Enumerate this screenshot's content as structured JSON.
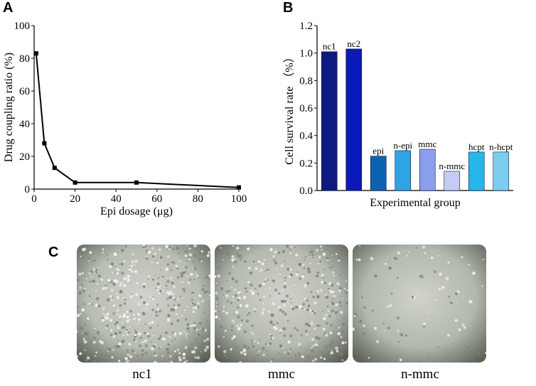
{
  "panels": {
    "a": "A",
    "b": "B",
    "c": "C"
  },
  "chart_data": [
    {
      "type": "line",
      "xlabel": "Epi dosage (μg)",
      "ylabel": "Drug coupling ratio (%)",
      "xlim": [
        0,
        100
      ],
      "ylim": [
        0,
        100
      ],
      "xticks": [
        0,
        20,
        40,
        60,
        80,
        100
      ],
      "yticks": [
        0,
        20,
        40,
        60,
        80,
        100
      ],
      "x": [
        1,
        5,
        10,
        20,
        50,
        100
      ],
      "y": [
        83,
        28,
        13,
        4,
        4,
        1
      ],
      "color": "#000000"
    },
    {
      "type": "bar",
      "xlabel": "Experimental group",
      "ylabel": "Cell survival rate （%）",
      "ylim": [
        0,
        1.2
      ],
      "yticks": [
        "0.0",
        "0.2",
        "0.4",
        "0.6",
        "0.8",
        "1.0",
        "1.2"
      ],
      "categories": [
        "nc1",
        "nc2",
        "epi",
        "n-epi",
        "mmc",
        "n-mmc",
        "hcpt",
        "n-hcpt"
      ],
      "values": [
        1.01,
        1.03,
        0.25,
        0.29,
        0.3,
        0.14,
        0.28,
        0.28
      ],
      "colors": [
        "#0d1a80",
        "#0a1ab8",
        "#0a62b0",
        "#2ea3e6",
        "#8a9ef0",
        "#c4cbf5",
        "#27b6ea",
        "#7ccdf0"
      ]
    }
  ],
  "micrographs": {
    "captions": [
      "nc1",
      "mmc",
      "n-mmc"
    ],
    "images": [
      {
        "name": "nc1",
        "density": 520,
        "base": "#b8bdb4",
        "edge": "#5a5f55"
      },
      {
        "name": "mmc",
        "density": 420,
        "base": "#b5bab0",
        "edge": "#595e53"
      },
      {
        "name": "n-mmc",
        "density": 90,
        "base": "#b2b8ae",
        "edge": "#5d6258"
      }
    ]
  }
}
